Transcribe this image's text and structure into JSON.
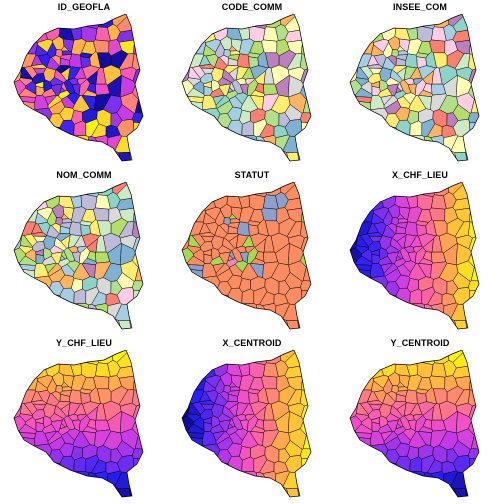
{
  "figure": {
    "panels": [
      {
        "title": "ID_GEOFLA",
        "palette": "sf",
        "mode": "random"
      },
      {
        "title": "CODE_COMM",
        "palette": "pastel",
        "mode": "random"
      },
      {
        "title": "INSEE_COM",
        "palette": "pastel",
        "mode": "random"
      },
      {
        "title": "NOM_COMM",
        "palette": "pastel",
        "mode": "random"
      },
      {
        "title": "STATUT",
        "palette": "statut",
        "mode": "category"
      },
      {
        "title": "X_CHF_LIEU",
        "palette": "sf",
        "mode": "x"
      },
      {
        "title": "Y_CHF_LIEU",
        "palette": "sf",
        "mode": "y"
      },
      {
        "title": "X_CENTROID",
        "palette": "sf",
        "mode": "x"
      },
      {
        "title": "Y_CENTROID",
        "palette": "sf",
        "mode": "y"
      }
    ],
    "colors": {
      "sf": [
        "#0d0887",
        "#2b20f5",
        "#7a30f0",
        "#c039e8",
        "#f050c8",
        "#ff6f93",
        "#ff9a5a",
        "#ffc933",
        "#f8f50f"
      ],
      "pastel": [
        "#8dd3c7",
        "#ffffb3",
        "#bebada",
        "#fb8072",
        "#80b1d3",
        "#fdb462",
        "#b3de69",
        "#fccde5",
        "#d9d9d9",
        "#bc80bd",
        "#ccebc5",
        "#ffed6f",
        "#a6cee3",
        "#b2df8a"
      ],
      "statut": {
        "main": "#fc8d62",
        "alt1": "#8da0cb",
        "alt2": "#a6d854",
        "alt3": "#e78ac3"
      },
      "border": "#000000"
    }
  }
}
